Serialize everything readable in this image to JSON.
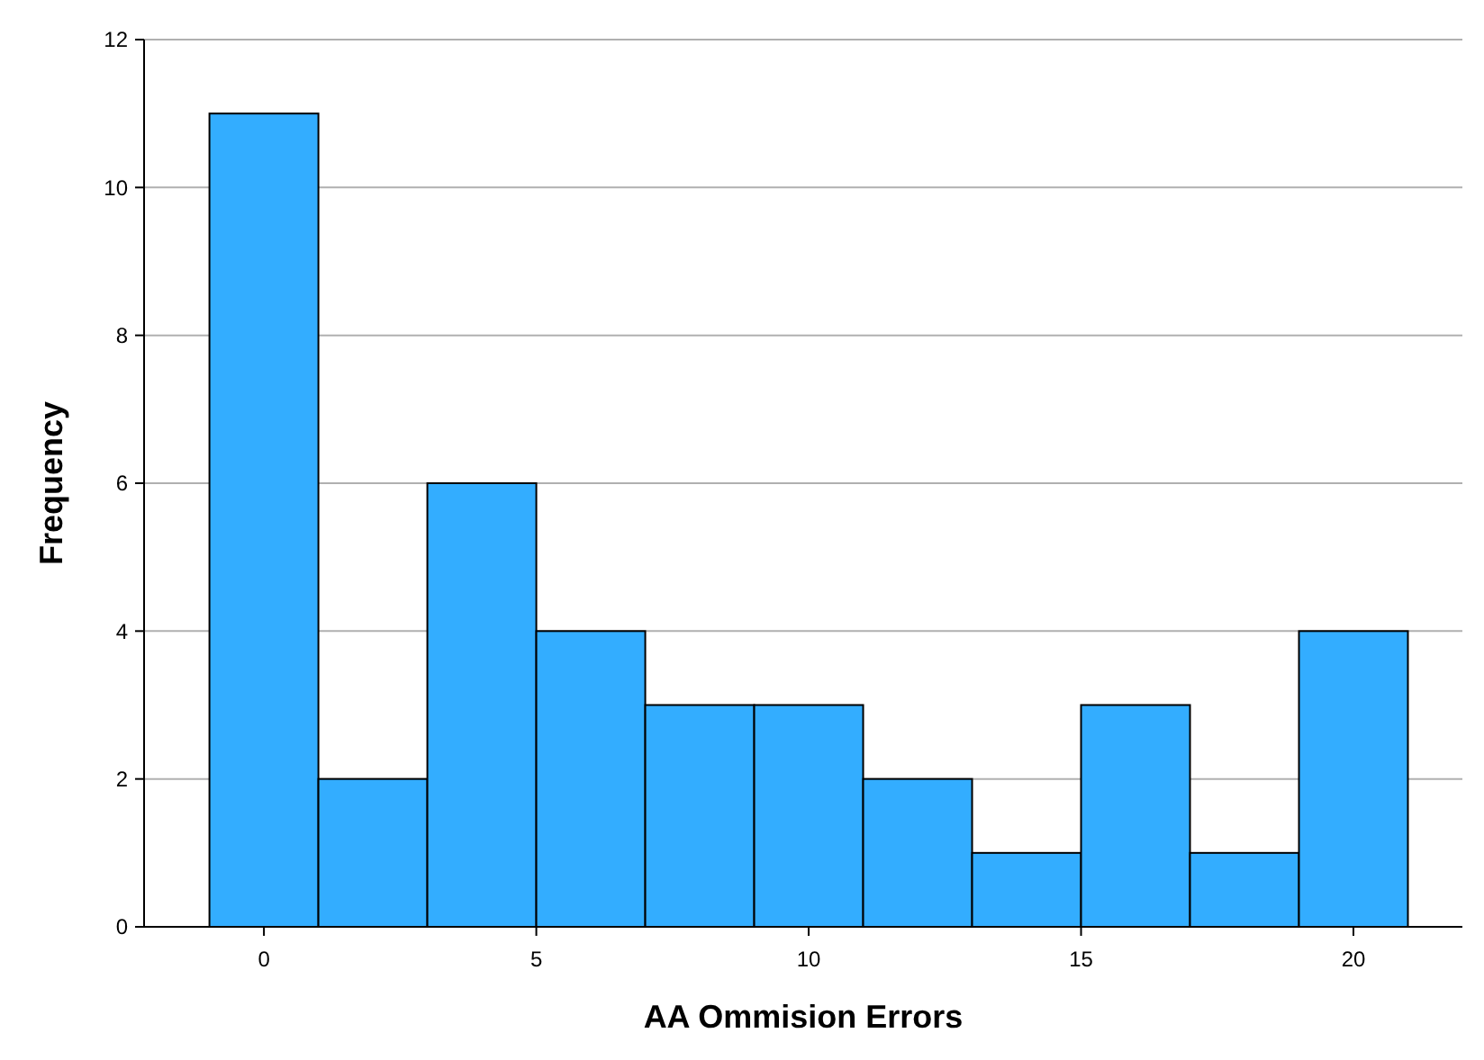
{
  "chart_data": {
    "type": "histogram",
    "xlabel": "AA Ommision Errors",
    "ylabel": "Frequency",
    "bins": [
      -1,
      1,
      3,
      5,
      7,
      9,
      11,
      13,
      15,
      17,
      19,
      21
    ],
    "values": [
      11,
      2,
      6,
      4,
      3,
      3,
      2,
      1,
      3,
      1,
      4
    ],
    "color": "#33adff",
    "xlim": [
      -2.2,
      22
    ],
    "xticks": [
      0,
      5,
      10,
      15,
      20
    ],
    "ylim": [
      0,
      12
    ],
    "yticks": [
      0,
      2,
      4,
      6,
      8,
      10,
      12
    ],
    "grid": "y"
  }
}
